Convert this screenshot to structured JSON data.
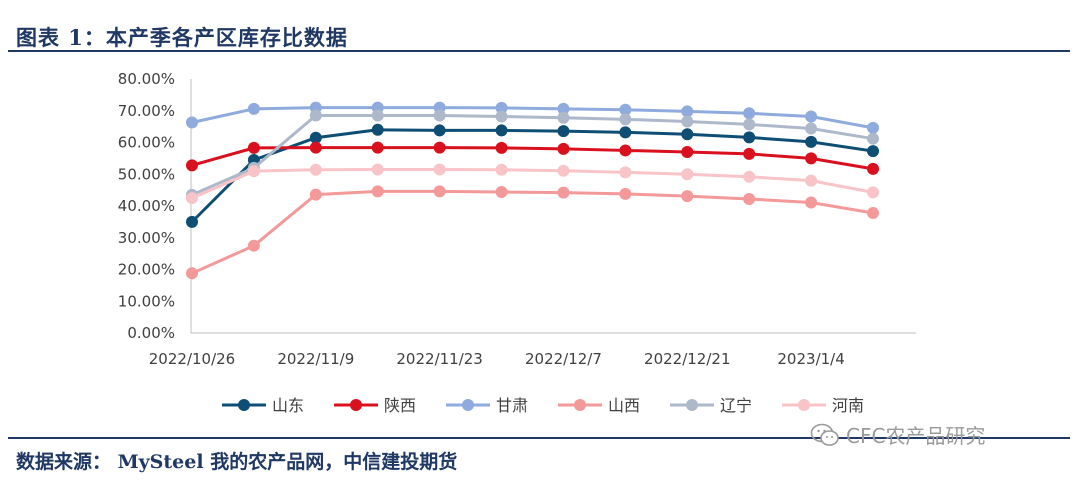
{
  "header": {
    "title": "图表 1：本产季各产区库存比数据"
  },
  "footer": {
    "source": "数据来源： MySteel 我的农产品网，中信建投期货",
    "watermark": "CFC农产品研究",
    "watermark_icon": "wechat-icon"
  },
  "chart_data": {
    "type": "line",
    "title": "",
    "xlabel": "",
    "ylabel": "",
    "x": [
      "2022/10/26",
      "2022/11/2",
      "2022/11/9",
      "2022/11/16",
      "2022/11/23",
      "2022/11/30",
      "2022/12/7",
      "2022/12/14",
      "2022/12/21",
      "2022/12/28",
      "2023/1/4",
      "2023/1/11"
    ],
    "x_tick_labels": [
      "2022/10/26",
      "2022/11/9",
      "2022/11/23",
      "2022/12/7",
      "2022/12/21",
      "2023/1/4"
    ],
    "y_tick_labels": [
      "0.00%",
      "10.00%",
      "20.00%",
      "30.00%",
      "40.00%",
      "50.00%",
      "60.00%",
      "70.00%",
      "80.00%"
    ],
    "ylim": [
      0,
      80
    ],
    "y_unit": "%",
    "grid": false,
    "legend_position": "bottom",
    "series": [
      {
        "name": "山东",
        "color": "#0e4d74",
        "values": [
          35.0,
          54.5,
          61.5,
          64.0,
          63.8,
          63.8,
          63.6,
          63.2,
          62.6,
          61.6,
          60.2,
          57.3
        ]
      },
      {
        "name": "陕西",
        "color": "#d9101e",
        "values": [
          52.8,
          58.3,
          58.4,
          58.4,
          58.4,
          58.3,
          58.0,
          57.5,
          57.0,
          56.4,
          55.0,
          51.7
        ]
      },
      {
        "name": "甘肃",
        "color": "#8faadc",
        "values": [
          66.3,
          70.6,
          71.0,
          71.0,
          71.0,
          70.9,
          70.6,
          70.3,
          69.8,
          69.2,
          68.2,
          64.6
        ]
      },
      {
        "name": "山西",
        "color": "#f4999a",
        "values": [
          18.8,
          27.5,
          43.6,
          44.6,
          44.6,
          44.4,
          44.2,
          43.8,
          43.1,
          42.2,
          41.1,
          37.8
        ]
      },
      {
        "name": "辽宁",
        "color": "#adb9ca",
        "values": [
          43.5,
          52.0,
          68.5,
          68.5,
          68.5,
          68.2,
          67.8,
          67.3,
          66.6,
          65.7,
          64.4,
          61.2
        ]
      },
      {
        "name": "河南",
        "color": "#f8c4c8",
        "values": [
          42.5,
          51.0,
          51.4,
          51.5,
          51.5,
          51.4,
          51.1,
          50.6,
          50.0,
          49.2,
          48.0,
          44.3
        ]
      }
    ]
  }
}
